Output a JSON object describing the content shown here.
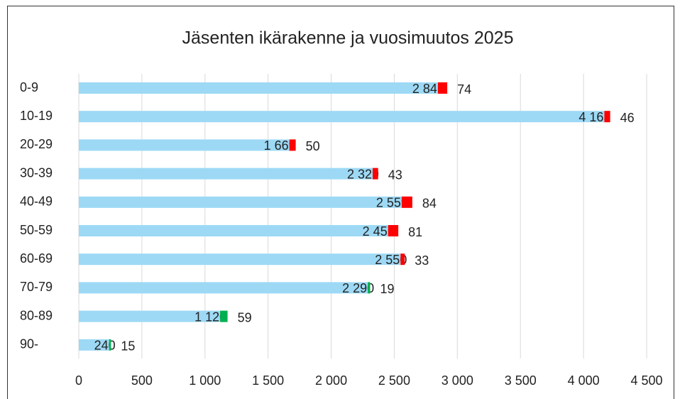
{
  "chart_data": {
    "type": "bar",
    "orientation": "horizontal",
    "stacked": true,
    "title": "Jäsenten ikärakenne ja vuosimuutos 2025",
    "categories": [
      "0-9",
      "10-19",
      "20-29",
      "30-39",
      "40-49",
      "50-59",
      "60-69",
      "70-79",
      "80-89",
      "90-"
    ],
    "series": [
      {
        "color": "#9dd9f5",
        "values": [
          2846,
          4165,
          1669,
          2329,
          2559,
          2451,
          2550,
          2290,
          1120,
          240
        ],
        "value_labels": [
          "2 846",
          "4 165",
          "1 669",
          "2 329",
          "2 559",
          "2 451",
          "2 550",
          "2 290",
          "1 120",
          "240"
        ]
      },
      {
        "colors": [
          "#ff0000",
          "#ff0000",
          "#ff0000",
          "#ff0000",
          "#ff0000",
          "#ff0000",
          "#ff0000",
          "#00b050",
          "#00b050",
          "#00b050"
        ],
        "values": [
          74,
          46,
          50,
          43,
          84,
          81,
          33,
          19,
          59,
          15
        ]
      }
    ],
    "xlim": [
      0,
      4500
    ],
    "xticks": [
      0,
      500,
      {
        "value": 1000,
        "label": "1 000"
      },
      {
        "value": 1500,
        "label": "1 500"
      },
      {
        "value": 2000,
        "label": "2 000"
      },
      {
        "value": 2500,
        "label": "2 500"
      },
      {
        "value": 3000,
        "label": "3 000"
      },
      {
        "value": 3500,
        "label": "3 500"
      },
      {
        "value": 4000,
        "label": "4 000"
      },
      {
        "value": 4500,
        "label": "4 500"
      }
    ],
    "grid": true
  }
}
